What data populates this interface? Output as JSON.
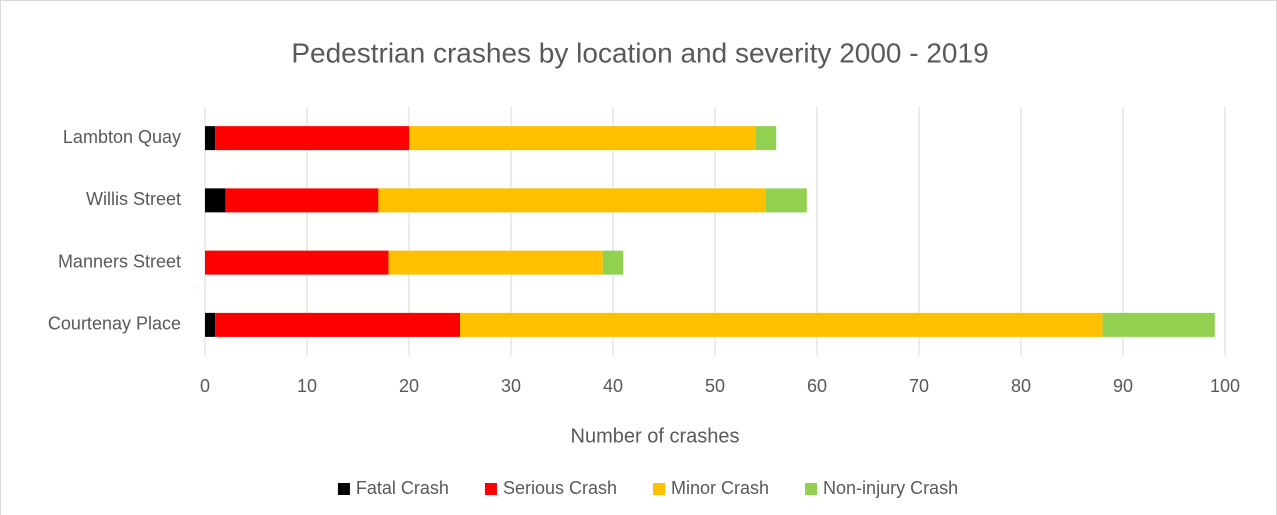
{
  "chart_data": {
    "type": "stacked-barh",
    "title": "Pedestrian crashes by location and severity 2000 - 2019",
    "x_label": "Number of crashes",
    "categories": [
      "Lambton Quay",
      "Willis Street",
      "Manners Street",
      "Courtenay Place"
    ],
    "series": [
      {
        "name": "Fatal Crash",
        "color": "#000000",
        "values": [
          1,
          2,
          0,
          1
        ]
      },
      {
        "name": "Serious Crash",
        "color": "#ff0000",
        "values": [
          19,
          15,
          18,
          24
        ]
      },
      {
        "name": "Minor Crash",
        "color": "#ffc000",
        "values": [
          34,
          38,
          21,
          63
        ]
      },
      {
        "name": "Non-injury Crash",
        "color": "#92d050",
        "values": [
          2,
          4,
          2,
          11
        ]
      }
    ],
    "xlim": [
      0,
      100
    ],
    "xticks": [
      0,
      10,
      20,
      30,
      40,
      50,
      60,
      70,
      80,
      90,
      100
    ],
    "grid": true,
    "legend": "bottom"
  }
}
